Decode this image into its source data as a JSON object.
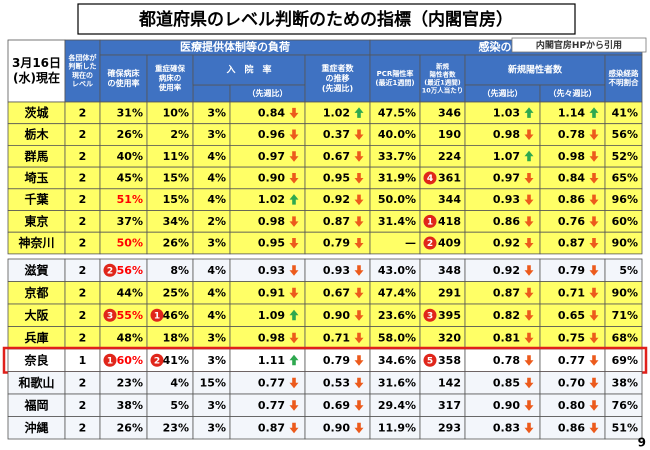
{
  "title": "都道府県のレベル判断のための指標（内閣官房）",
  "source": "内閣官房HPから引用",
  "page_number": "9",
  "styles": {
    "header_fill": "#3f72c2",
    "alert_color": "#ff0000",
    "rank_color": "#e0261b",
    "trend_colors": {
      "up": "#2ea84f",
      "down": "#ec5a1c"
    },
    "highlight_color": "#e0201b"
  },
  "header": {
    "date": [
      "3月16日",
      "(水)現在"
    ],
    "level": [
      "各団体が",
      "判断した",
      "現在の",
      "レベル"
    ],
    "medical": [
      "医療提供体制等の負荷"
    ],
    "infection": [
      "感染の状況"
    ],
    "bed": [
      "確保病床",
      "の使用率"
    ],
    "severe_bed": [
      "重症確保",
      "病床の",
      "使用率"
    ],
    "hospital": [
      "入　院　率"
    ],
    "hospital_week": [
      "（先週比）"
    ],
    "severe_trend": [
      "重症者数",
      "の推移",
      "(先週比)"
    ],
    "pcr": [
      "PCR陽性率",
      "(最近1週間)"
    ],
    "new_cases": [
      "新規",
      "陽性者数",
      "(最近1週間)",
      "10万人当たり"
    ],
    "new_ratio": [
      "新規陽性者数"
    ],
    "new_week": [
      "（先週比）"
    ],
    "new_two_week": [
      "（先々週比）"
    ],
    "unknown": [
      "感染経路",
      "不明割合"
    ]
  },
  "groups": [
    [
      {
        "fill": "#ffff66",
        "cells": [
          "茨城",
          "2",
          "31%",
          "10%",
          "3%",
          "0.84",
          "1.02",
          "47.5%",
          "346",
          "1.03",
          "1.14",
          "41%"
        ],
        "trends": [
          "down",
          "up",
          "up",
          "up"
        ]
      },
      {
        "fill": "#ffff66",
        "cells": [
          "栃木",
          "2",
          "26%",
          "2%",
          "3%",
          "0.96",
          "0.37",
          "40.0%",
          "190",
          "0.98",
          "0.78",
          "56%"
        ],
        "trends": [
          "down",
          "down",
          "down",
          "down"
        ]
      },
      {
        "fill": "#ffff66",
        "cells": [
          "群馬",
          "2",
          "40%",
          "11%",
          "4%",
          "0.97",
          "0.67",
          "33.7%",
          "224",
          "1.07",
          "0.98",
          "52%"
        ],
        "trends": [
          "down",
          "down",
          "up",
          "down"
        ]
      },
      {
        "fill": "#ffff66",
        "cells": [
          "埼玉",
          "2",
          "45%",
          "15%",
          "4%",
          "0.90",
          "0.95",
          "31.9%",
          {
            "text": "361",
            "rank": "4"
          },
          "0.97",
          "0.84",
          "65%"
        ],
        "trends": [
          "down",
          "down",
          "down",
          "down"
        ]
      },
      {
        "fill": "#ffff66",
        "cells": [
          "千葉",
          "2",
          {
            "text": "51%",
            "alert": true
          },
          "15%",
          "4%",
          "1.02",
          "0.92",
          "50.0%",
          "344",
          "0.93",
          "0.86",
          "96%"
        ],
        "trends": [
          "up",
          "down",
          "down",
          "down"
        ]
      },
      {
        "fill": "#ffff66",
        "cells": [
          "東京",
          "2",
          "37%",
          "34%",
          "2%",
          "0.98",
          "0.87",
          "31.4%",
          {
            "text": "418",
            "rank": "1"
          },
          "0.86",
          "0.76",
          "60%"
        ],
        "trends": [
          "down",
          "down",
          "down",
          "down"
        ]
      },
      {
        "fill": "#ffff66",
        "cells": [
          "神奈川",
          "2",
          {
            "text": "50%",
            "alert": true
          },
          "26%",
          "3%",
          "0.95",
          "0.79",
          "—",
          {
            "text": "409",
            "rank": "2"
          },
          "0.92",
          "0.87",
          "90%"
        ],
        "trends": [
          "down",
          "down",
          "down",
          "down"
        ]
      }
    ],
    [
      {
        "fill": "#f3f6fb",
        "cells": [
          "滋賀",
          "2",
          {
            "text": "56%",
            "alert": true,
            "rank": "2"
          },
          "8%",
          "4%",
          "0.93",
          "0.93",
          "43.0%",
          "348",
          "0.92",
          "0.79",
          "5%"
        ],
        "trends": [
          "down",
          "down",
          "down",
          "down"
        ]
      },
      {
        "fill": "#ffff66",
        "cells": [
          "京都",
          "2",
          "44%",
          "25%",
          "4%",
          "0.91",
          "0.67",
          "47.4%",
          "291",
          "0.87",
          "0.71",
          "90%"
        ],
        "trends": [
          "down",
          "down",
          "down",
          "down"
        ]
      },
      {
        "fill": "#ffff66",
        "cells": [
          "大阪",
          "2",
          {
            "text": "55%",
            "alert": true,
            "rank": "3"
          },
          {
            "text": "46%",
            "rank": "1"
          },
          "4%",
          "1.09",
          "0.90",
          "23.6%",
          {
            "text": "395",
            "rank": "3"
          },
          "0.82",
          "0.65",
          "71%"
        ],
        "trends": [
          "up",
          "down",
          "down",
          "down"
        ]
      },
      {
        "fill": "#ffff66",
        "cells": [
          "兵庫",
          "2",
          "48%",
          "18%",
          "3%",
          "0.98",
          "0.71",
          "58.0%",
          "320",
          "0.81",
          "0.75",
          "68%"
        ],
        "trends": [
          "down",
          "down",
          "down",
          "down"
        ]
      },
      {
        "fill": "#ffffff",
        "highlight": true,
        "cells": [
          "奈良",
          "1",
          {
            "text": "60%",
            "alert": true,
            "rank": "1"
          },
          {
            "text": "41%",
            "rank": "2"
          },
          "3%",
          "1.11",
          "0.79",
          "34.6%",
          {
            "text": "358",
            "rank": "5"
          },
          "0.78",
          "0.77",
          "69%"
        ],
        "trends": [
          "up",
          "down",
          "down",
          "down"
        ]
      },
      {
        "fill": "#f3f6fb",
        "cells": [
          "和歌山",
          "2",
          "23%",
          "4%",
          "15%",
          "0.77",
          "0.53",
          "31.6%",
          "142",
          "0.85",
          "0.70",
          "38%"
        ],
        "trends": [
          "down",
          "down",
          "down",
          "down"
        ]
      },
      {
        "fill": "#f3f6fb",
        "cells": [
          "福岡",
          "2",
          "38%",
          "5%",
          "3%",
          "0.77",
          "0.69",
          "29.4%",
          "317",
          "0.90",
          "0.80",
          "76%"
        ],
        "trends": [
          "down",
          "down",
          "down",
          "down"
        ]
      },
      {
        "fill": "#f3f6fb",
        "cells": [
          "沖縄",
          "2",
          "26%",
          "23%",
          "3%",
          "0.87",
          "0.90",
          "11.9%",
          "293",
          "0.83",
          "0.86",
          "51%"
        ],
        "trends": [
          "down",
          "down",
          "down",
          "down"
        ]
      }
    ]
  ]
}
